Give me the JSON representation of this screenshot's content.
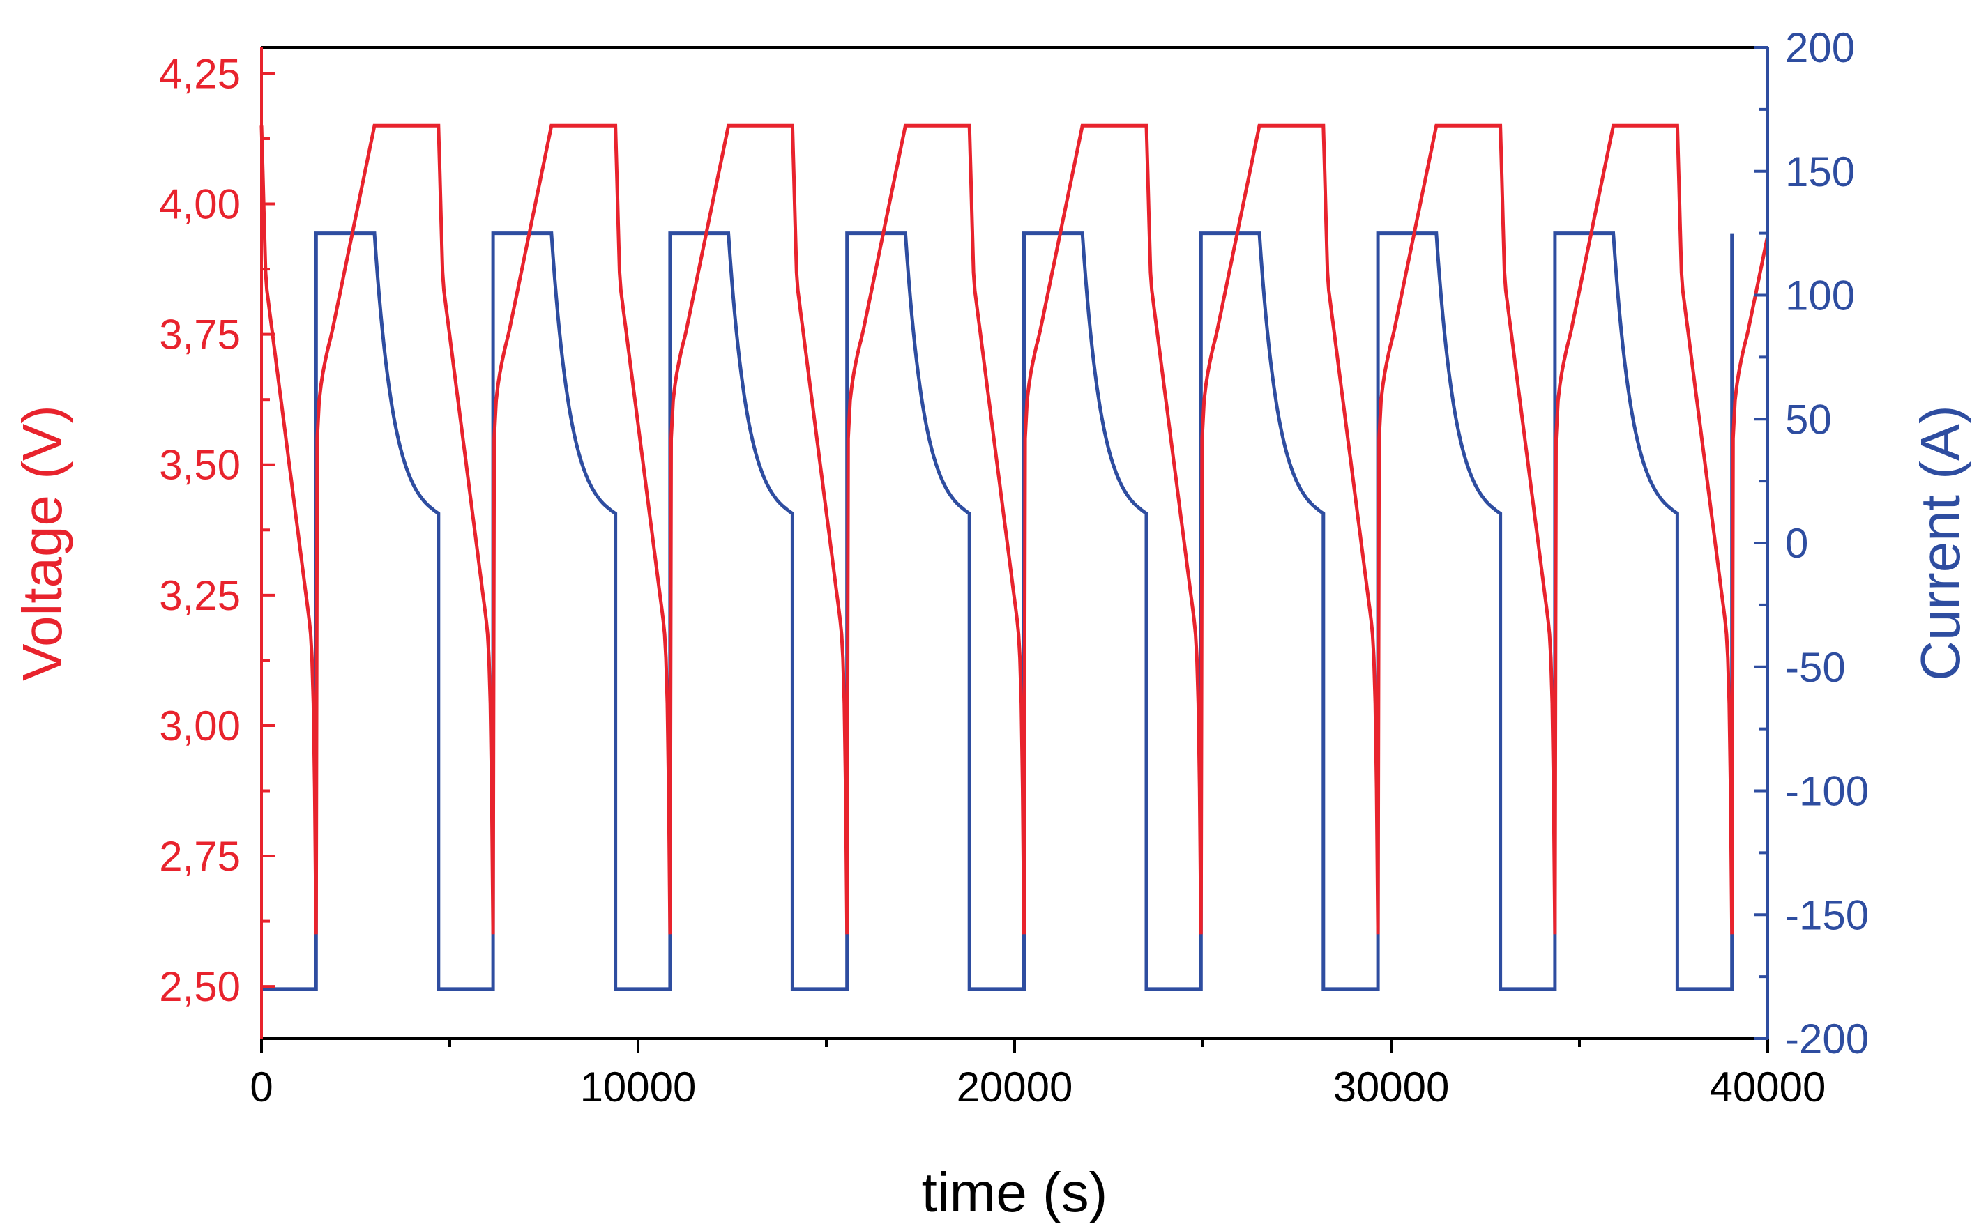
{
  "chart_data": {
    "type": "line",
    "xlabel": "time (s)",
    "ylabel_left": "Voltage (V)",
    "ylabel_right": "Current (A)",
    "xlim": [
      0,
      40000
    ],
    "ylim_left": [
      2.4,
      4.3
    ],
    "ylim_right": [
      -200,
      200
    ],
    "x_ticks": [
      "0",
      "10000",
      "20000",
      "30000",
      "40000"
    ],
    "y_left_ticks": [
      "2,50",
      "2,75",
      "3,00",
      "3,25",
      "3,50",
      "3,75",
      "4,00",
      "4,25"
    ],
    "y_right_ticks": [
      "-200",
      "-150",
      "-100",
      "-50",
      "0",
      "50",
      "100",
      "150",
      "200"
    ],
    "grid": false,
    "colors": {
      "voltage": "#e8232d",
      "current": "#2e4da0",
      "axis": "#000000"
    },
    "cycle": {
      "period_s": 4700,
      "first_start_s": 0,
      "n_cycles": 9,
      "discharge_duration_s": 1450,
      "cc_charge_duration_s": 1550,
      "cv_charge_duration_s": 1700,
      "discharge_current_A": -180,
      "charge_current_A": 125,
      "cv_end_current_A": 8,
      "voltage_max_V": 4.15,
      "voltage_min_V": 2.6,
      "voltage_after_charge_start_V": 3.55,
      "voltage_knee_V": 3.75,
      "voltage_discharge_knee_V": 3.85
    },
    "series": [
      {
        "name": "Voltage (V)",
        "axis": "left"
      },
      {
        "name": "Current (A)",
        "axis": "right"
      }
    ]
  }
}
